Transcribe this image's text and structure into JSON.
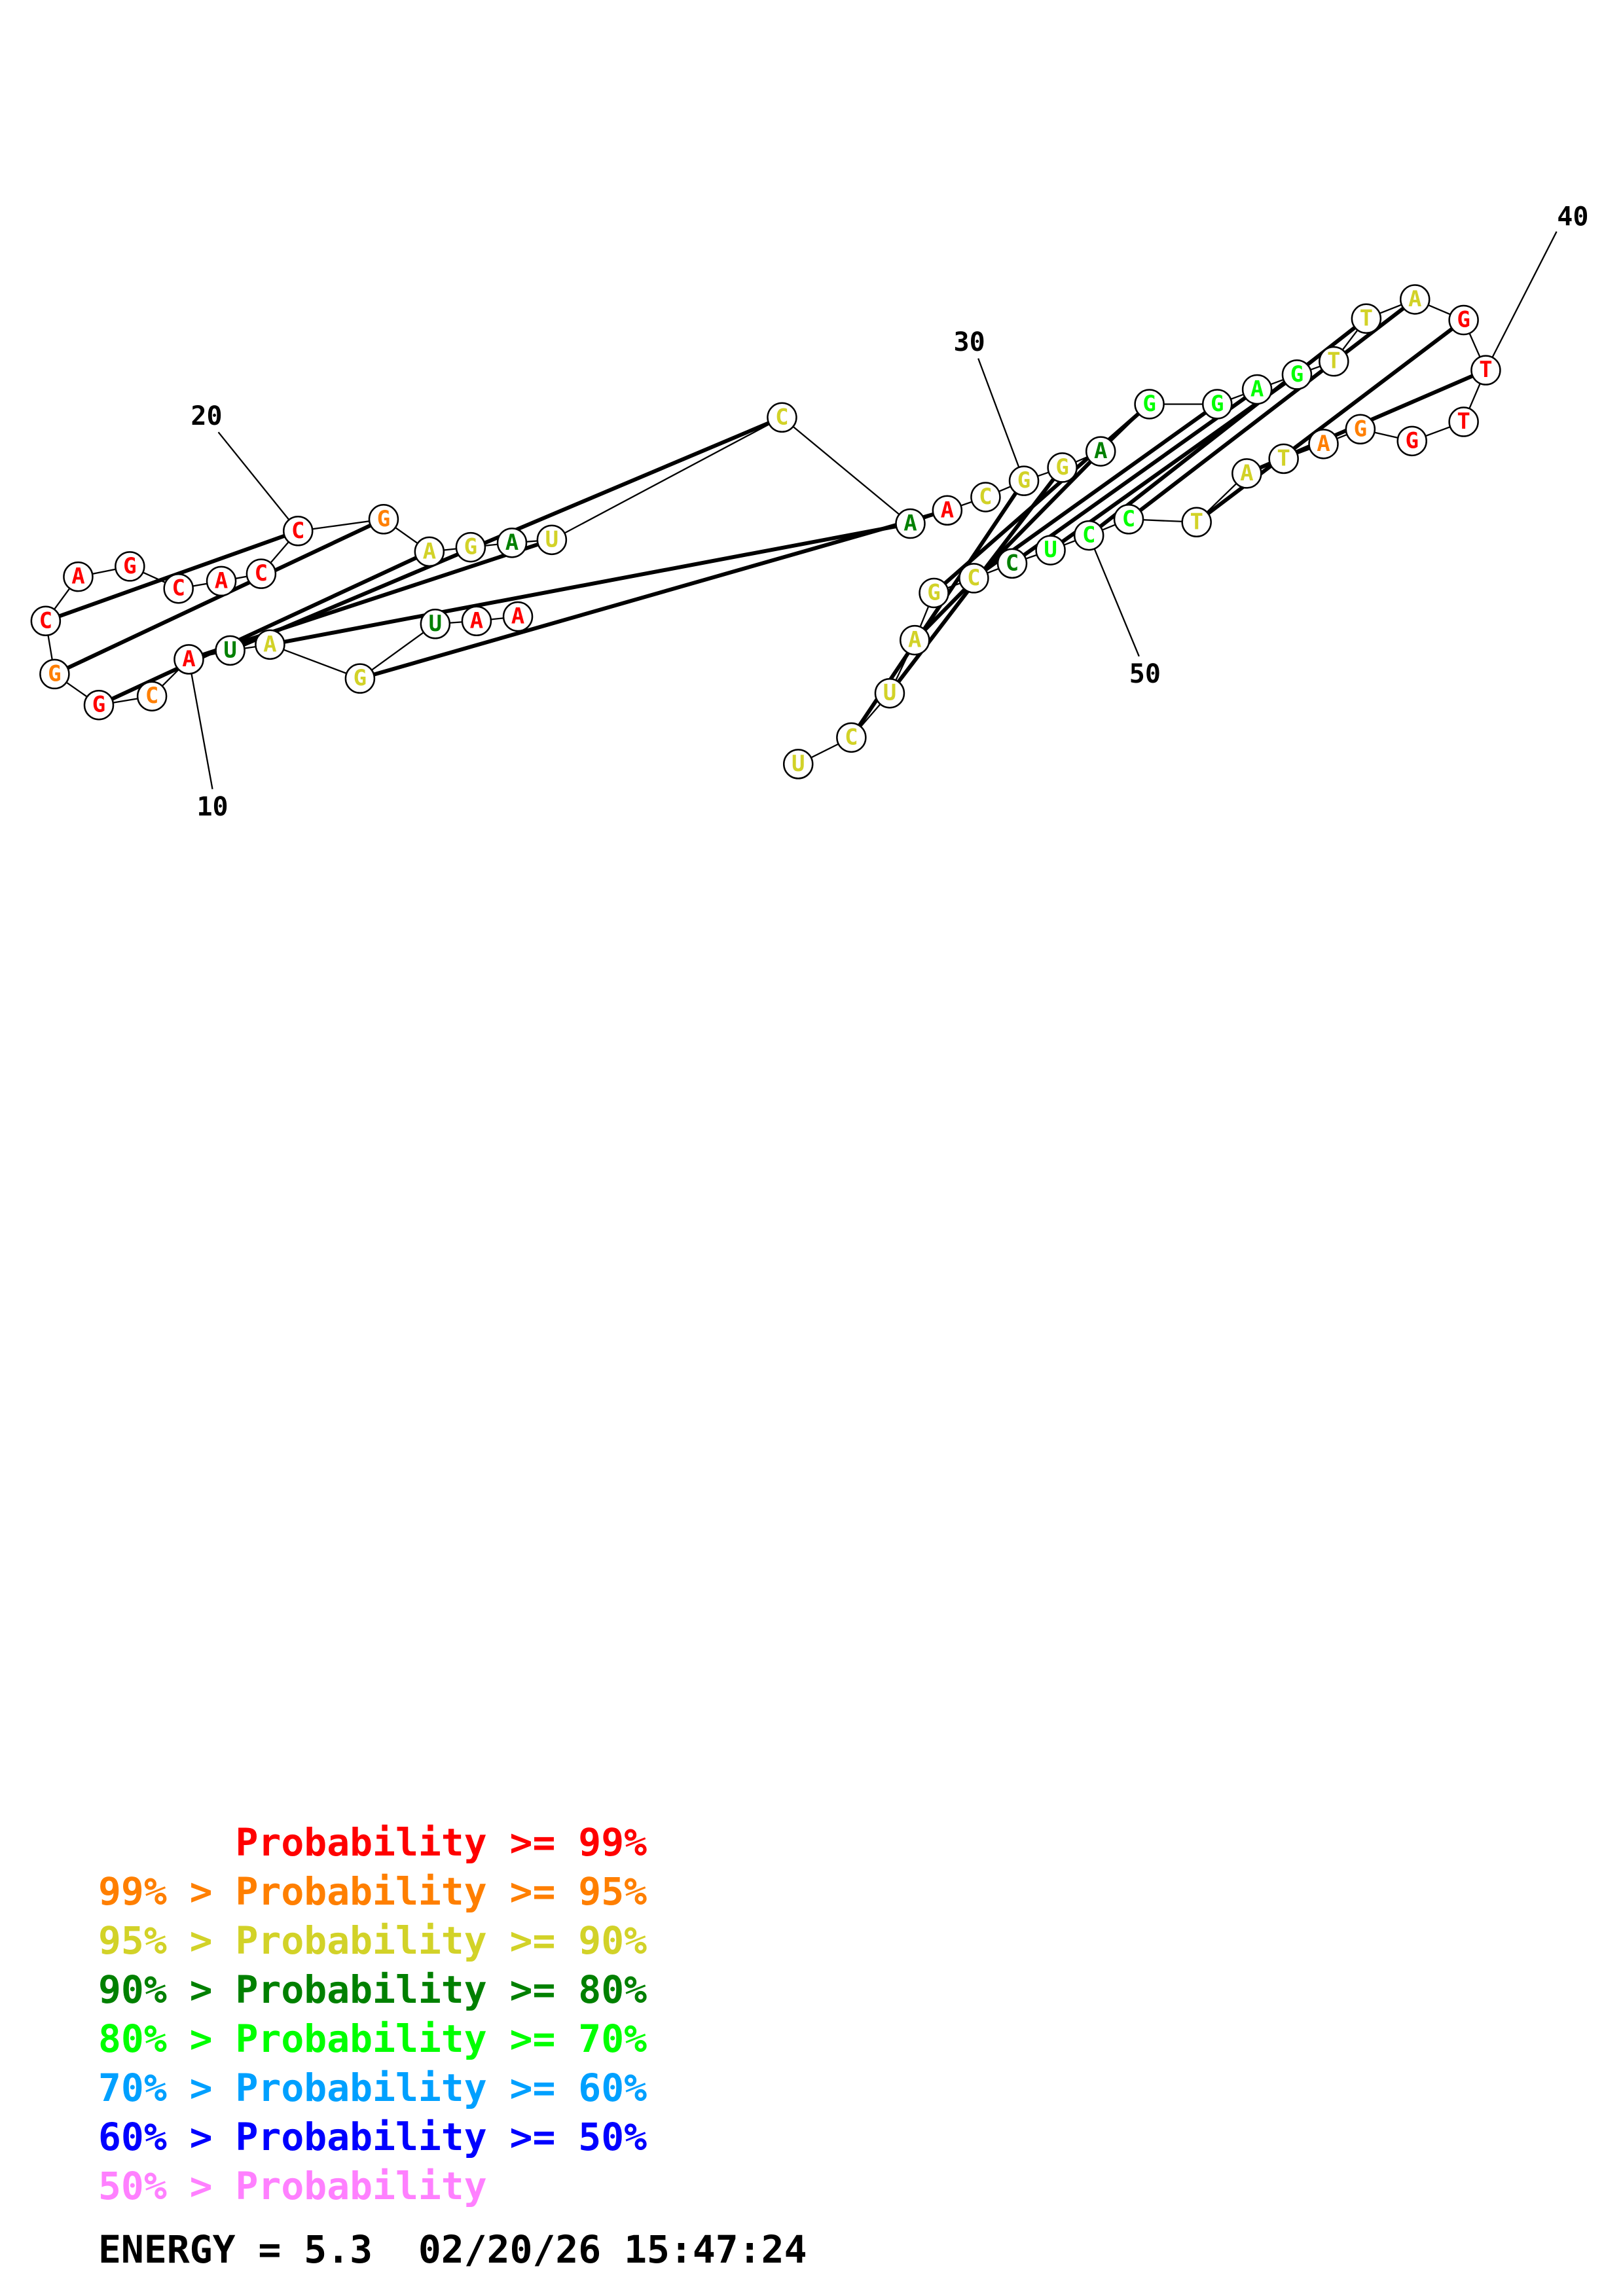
{
  "structure": {
    "sequence": [
      "A",
      "A",
      "U",
      "G",
      "A",
      "U",
      "A",
      "C",
      "G",
      "G",
      "C",
      "A",
      "G",
      "C",
      "A",
      "C",
      "C",
      "G",
      "A",
      "G",
      "A",
      "U",
      "C",
      "A",
      "A",
      "C",
      "G",
      "G",
      "A",
      "G",
      "G",
      "A",
      "G",
      "T",
      "T",
      "A",
      "G",
      "T",
      "T",
      "G",
      "G",
      "A",
      "T",
      "A",
      "T",
      "C",
      "C",
      "U",
      "C",
      "C",
      "G",
      "A",
      "U",
      "C",
      "U"
    ],
    "colors": [
      "#ff0000",
      "#ff0000",
      "#008000",
      "#d2d228",
      "#d2d228",
      "#008000",
      "#ff0000",
      "#ff7f00",
      "#ff0000",
      "#ff7f00",
      "#ff0000",
      "#ff0000",
      "#ff0000",
      "#ff0000",
      "#ff0000",
      "#ff0000",
      "#ff0000",
      "#ff7f00",
      "#d2d228",
      "#d2d228",
      "#008000",
      "#d2d228",
      "#d2d228",
      "#008000",
      "#ff0000",
      "#d2d228",
      "#d2d228",
      "#d2d228",
      "#008000",
      "#00ff00",
      "#00ff00",
      "#00ff00",
      "#00ff00",
      "#d2d228",
      "#d2d228",
      "#d2d228",
      "#ff0000",
      "#ff0000",
      "#ff0000",
      "#ff0000",
      "#ff7f00",
      "#ff7f00",
      "#d2d228",
      "#d2d228",
      "#d2d228",
      "#00ff00",
      "#00ff00",
      "#00ff00",
      "#008000",
      "#d2d228",
      "#d2d228",
      "#d2d228",
      "#d2d228",
      "#d2d228",
      "#d2d228"
    ],
    "pairs": [
      [
        3,
        24
      ],
      [
        4,
        23
      ],
      [
        5,
        22
      ],
      [
        6,
        21
      ],
      [
        8,
        18
      ],
      [
        9,
        17
      ],
      [
        10,
        16
      ],
      [
        26,
        53
      ],
      [
        27,
        52
      ],
      [
        28,
        51
      ],
      [
        29,
        50
      ],
      [
        30,
        49
      ],
      [
        31,
        48
      ],
      [
        32,
        47
      ],
      [
        34,
        46
      ],
      [
        35,
        45
      ],
      [
        36,
        44
      ],
      [
        37,
        43
      ]
    ],
    "position_labels": [
      {
        "index": 10,
        "text": "10"
      },
      {
        "index": 20,
        "text": "20"
      },
      {
        "index": 30,
        "text": "30"
      },
      {
        "index": 40,
        "text": "40"
      },
      {
        "index": 50,
        "text": "50"
      }
    ]
  },
  "legend": [
    {
      "text": "      Probability >= 99%",
      "color": "#ff0000"
    },
    {
      "text": "99% > Probability >= 95%",
      "color": "#ff7f00"
    },
    {
      "text": "95% > Probability >= 90%",
      "color": "#d2d228"
    },
    {
      "text": "90% > Probability >= 80%",
      "color": "#008000"
    },
    {
      "text": "80% > Probability >= 70%",
      "color": "#00ff00"
    },
    {
      "text": "70% > Probability >= 60%",
      "color": "#00a0ff"
    },
    {
      "text": "60% > Probability >= 50%",
      "color": "#0000ff"
    },
    {
      "text": "50% > Probability",
      "color": "#ff80ff"
    }
  ],
  "footer": {
    "text": "ENERGY = 5.3  02/20/26 15:47:24"
  }
}
